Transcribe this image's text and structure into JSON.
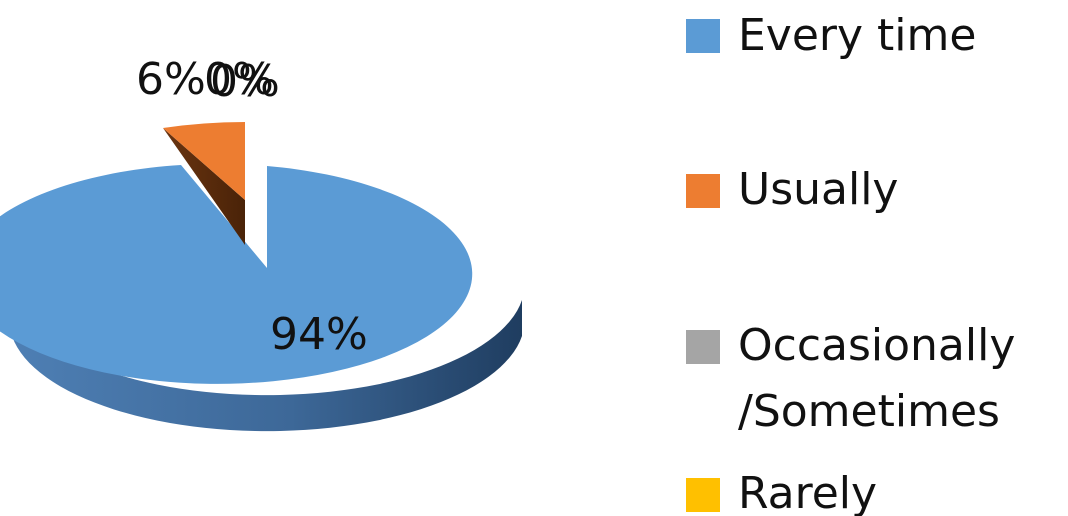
{
  "chart_data": {
    "type": "pie",
    "style": "3d-exploded",
    "title": "",
    "categories": [
      "Every time",
      "Usually",
      "Occasionally /Sometimes",
      "Rarely"
    ],
    "values": [
      94,
      6,
      0,
      0
    ],
    "data_labels": [
      "94%",
      "6%",
      "0%",
      "0%"
    ],
    "colors": [
      "#5B9BD5",
      "#ED7D31",
      "#A5A5A5",
      "#FFC000"
    ],
    "legend": {
      "position": "right",
      "items": [
        {
          "label": "Every time",
          "color": "#5B9BD5"
        },
        {
          "label": "Usually",
          "color": "#ED7D31"
        },
        {
          "label_lines": [
            "Occasionally",
            "/Sometimes"
          ],
          "color": "#A5A5A5"
        },
        {
          "label": "Rarely",
          "color": "#FFC000"
        }
      ]
    }
  }
}
